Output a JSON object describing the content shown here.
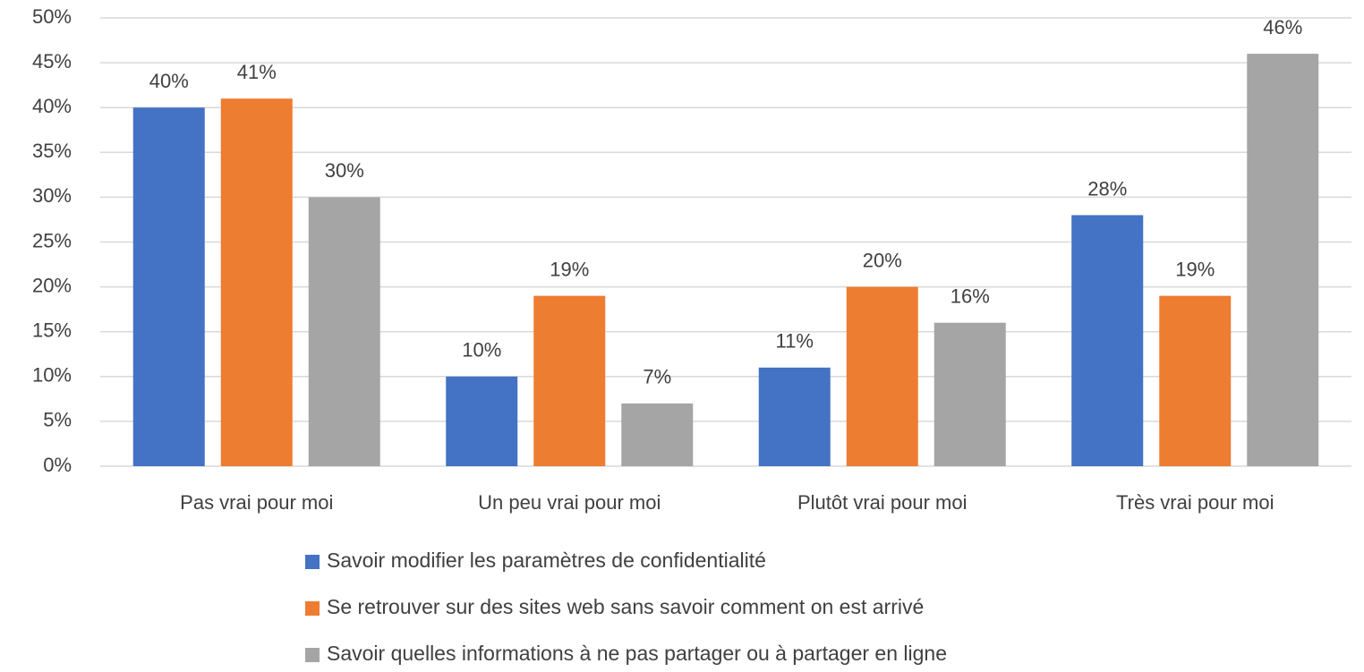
{
  "chart_data": {
    "type": "bar",
    "categories": [
      "Pas vrai pour moi",
      "Un peu vrai pour moi",
      "Plutôt vrai pour moi",
      "Très vrai pour moi"
    ],
    "series": [
      {
        "name": "Savoir modifier les paramètres de confidentialité",
        "color": "#4472c4",
        "values": [
          40,
          10,
          11,
          28
        ],
        "value_labels": [
          "40%",
          "10%",
          "11%",
          "28%"
        ]
      },
      {
        "name": "Se retrouver sur des sites web sans savoir comment on est arrivé",
        "color": "#ed7d31",
        "values": [
          41,
          19,
          20,
          19
        ],
        "value_labels": [
          "41%",
          "19%",
          "20%",
          "19%"
        ]
      },
      {
        "name": "Savoir quelles informations à ne pas partager ou à partager en ligne",
        "color": "#a5a5a5",
        "values": [
          30,
          7,
          16,
          46
        ],
        "value_labels": [
          "30%",
          "7%",
          "16%",
          "46%"
        ]
      }
    ],
    "ylim": [
      0,
      50
    ],
    "yticks": [
      {
        "value": 0,
        "label": "0%"
      },
      {
        "value": 5,
        "label": "5%"
      },
      {
        "value": 10,
        "label": "10%"
      },
      {
        "value": 15,
        "label": "15%"
      },
      {
        "value": 20,
        "label": "20%"
      },
      {
        "value": 25,
        "label": "25%"
      },
      {
        "value": 30,
        "label": "30%"
      },
      {
        "value": 35,
        "label": "35%"
      },
      {
        "value": 40,
        "label": "40%"
      },
      {
        "value": 45,
        "label": "45%"
      },
      {
        "value": 50,
        "label": "50%"
      }
    ],
    "grid": true,
    "legend": "bottom"
  }
}
